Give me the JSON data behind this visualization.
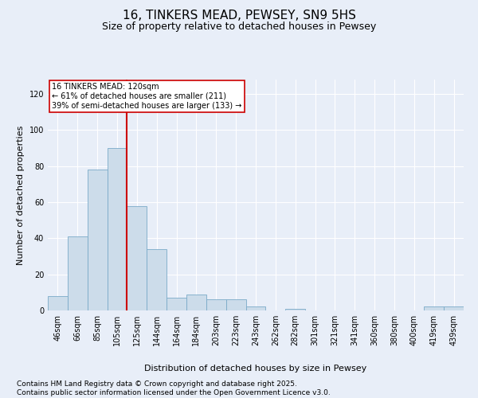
{
  "title": "16, TINKERS MEAD, PEWSEY, SN9 5HS",
  "subtitle": "Size of property relative to detached houses in Pewsey",
  "xlabel": "Distribution of detached houses by size in Pewsey",
  "ylabel": "Number of detached properties",
  "categories": [
    "46sqm",
    "66sqm",
    "85sqm",
    "105sqm",
    "125sqm",
    "144sqm",
    "164sqm",
    "184sqm",
    "203sqm",
    "223sqm",
    "243sqm",
    "262sqm",
    "282sqm",
    "301sqm",
    "321sqm",
    "341sqm",
    "360sqm",
    "380sqm",
    "400sqm",
    "419sqm",
    "439sqm"
  ],
  "bar_values": [
    8,
    41,
    78,
    90,
    58,
    34,
    7,
    9,
    6,
    6,
    2,
    0,
    1,
    0,
    0,
    0,
    0,
    0,
    0,
    2,
    2
  ],
  "bar_color": "#ccdcea",
  "bar_edge_color": "#7aaac8",
  "vline_x": 3.5,
  "vline_color": "#cc0000",
  "annotation_text": "16 TINKERS MEAD: 120sqm\n← 61% of detached houses are smaller (211)\n39% of semi-detached houses are larger (133) →",
  "ylim": [
    0,
    128
  ],
  "yticks": [
    0,
    20,
    40,
    60,
    80,
    100,
    120
  ],
  "footer_text": "Contains HM Land Registry data © Crown copyright and database right 2025.\nContains public sector information licensed under the Open Government Licence v3.0.",
  "background_color": "#e8eef8",
  "plot_bg_color": "#e8eef8",
  "grid_color": "#ffffff",
  "title_fontsize": 11,
  "subtitle_fontsize": 9,
  "axis_label_fontsize": 8,
  "tick_fontsize": 7,
  "footer_fontsize": 6.5
}
